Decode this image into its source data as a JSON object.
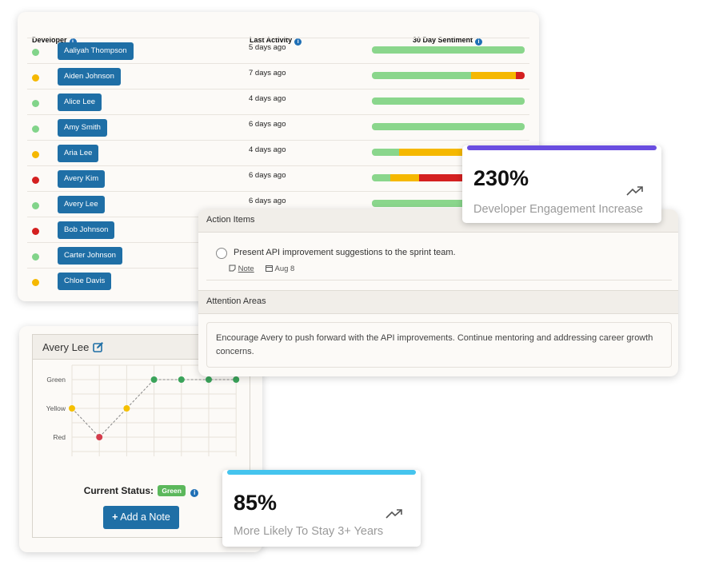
{
  "table": {
    "headers": {
      "developer": "Developer",
      "last_activity": "Last Activity",
      "sentiment": "30 Day Sentiment"
    },
    "rows": [
      {
        "name": "Aaliyah Thompson",
        "status": "#82d48a",
        "activity": "5 days ago",
        "bar": [
          [
            "#8ad68c",
            1.0
          ]
        ]
      },
      {
        "name": "Aiden Johnson",
        "status": "#f5b800",
        "activity": "7 days ago",
        "bar": [
          [
            "#8ad68c",
            0.65
          ],
          [
            "#f5b800",
            0.29
          ],
          [
            "#d42020",
            0.06
          ]
        ]
      },
      {
        "name": "Alice Lee",
        "status": "#82d48a",
        "activity": "4 days ago",
        "bar": [
          [
            "#8ad68c",
            1.0
          ]
        ]
      },
      {
        "name": "Amy Smith",
        "status": "#82d48a",
        "activity": "6 days ago",
        "bar": [
          [
            "#8ad68c",
            1.0
          ]
        ]
      },
      {
        "name": "Aria Lee",
        "status": "#f5b800",
        "activity": "4 days ago",
        "bar": [
          [
            "#8ad68c",
            0.18
          ],
          [
            "#f5b800",
            0.82
          ]
        ]
      },
      {
        "name": "Avery Kim",
        "status": "#d42020",
        "activity": "6 days ago",
        "bar": [
          [
            "#8ad68c",
            0.12
          ],
          [
            "#f5b800",
            0.19
          ],
          [
            "#d42020",
            0.69
          ]
        ]
      },
      {
        "name": "Avery Lee",
        "status": "#82d48a",
        "activity": "6 days ago",
        "bar": [
          [
            "#8ad68c",
            1.0
          ]
        ]
      },
      {
        "name": "Bob Johnson",
        "status": "#d42020",
        "activity": "",
        "bar": []
      },
      {
        "name": "Carter Johnson",
        "status": "#82d48a",
        "activity": "",
        "bar": []
      },
      {
        "name": "Chloe Davis",
        "status": "#f5b800",
        "activity": "",
        "bar": []
      }
    ]
  },
  "profile": {
    "name": "Avery Lee",
    "edit_icon": "edit-icon",
    "status_label": "Current Status:",
    "status_value": "Green",
    "add_note": "Add a Note",
    "chart_labels": [
      "Green",
      "Yellow",
      "Red"
    ]
  },
  "chart_data": {
    "type": "line",
    "categories": [
      "Green",
      "Yellow",
      "Red"
    ],
    "points": [
      {
        "x": 1,
        "level": "Yellow"
      },
      {
        "x": 2,
        "level": "Red"
      },
      {
        "x": 3,
        "level": "Yellow"
      },
      {
        "x": 4,
        "level": "Green"
      },
      {
        "x": 5,
        "level": "Green"
      },
      {
        "x": 6,
        "level": "Green"
      },
      {
        "x": 7,
        "level": "Green"
      }
    ],
    "colors": {
      "Green": "#3aa35a",
      "Yellow": "#f5c000",
      "Red": "#d43c4c"
    },
    "grid": true
  },
  "actions": {
    "title": "Action Items",
    "task": "Present API improvement suggestions to the sprint team.",
    "note_label": "Note",
    "date": "Aug 8",
    "attention_title": "Attention Areas",
    "attention_text": "Encourage Avery to push forward with the API improvements. Continue mentoring and addressing career growth concerns."
  },
  "stats": [
    {
      "value": "230%",
      "label": "Developer Engagement Increase",
      "color": "#6a4ee0"
    },
    {
      "value": "85%",
      "label": "More Likely To Stay 3+ Years",
      "color": "#45c4ee"
    }
  ]
}
